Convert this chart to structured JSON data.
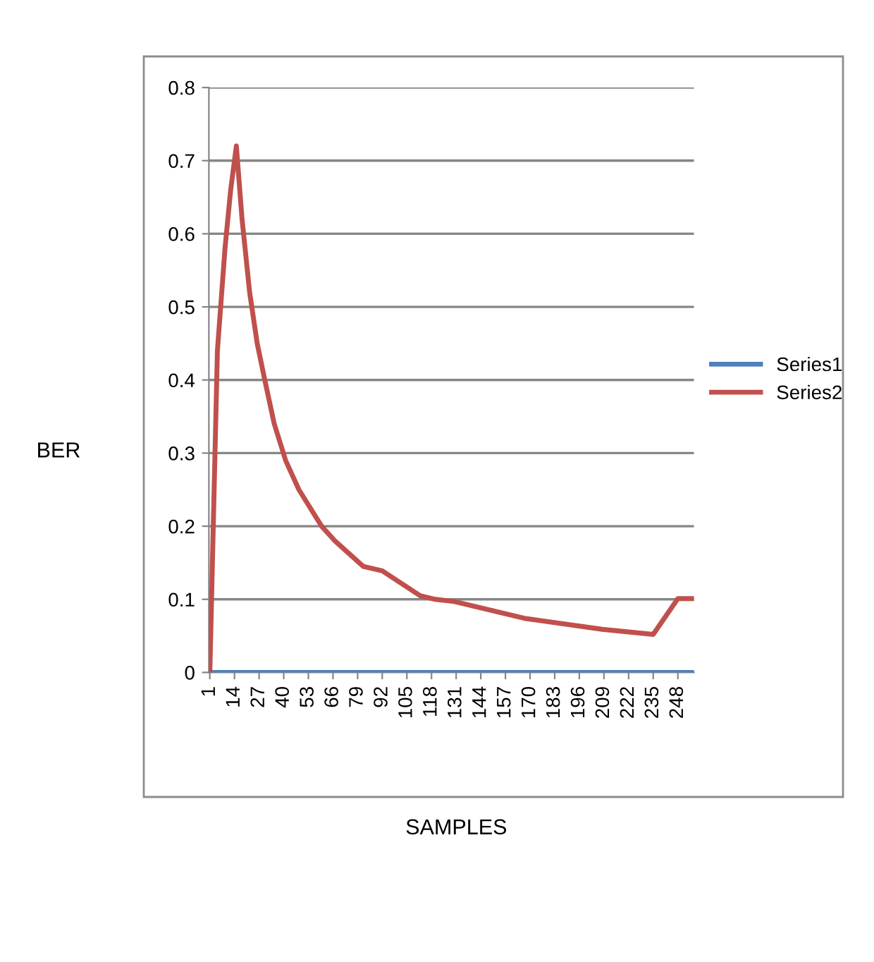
{
  "chart_data": {
    "type": "line",
    "xlabel": "SAMPLES",
    "ylabel": "BER",
    "xlim": [
      0.5,
      256.5
    ],
    "xticks": [
      1,
      14,
      27,
      40,
      53,
      66,
      79,
      92,
      105,
      118,
      131,
      144,
      157,
      170,
      183,
      196,
      209,
      222,
      235,
      248
    ],
    "ylim": [
      0,
      0.8
    ],
    "yticks": [
      0,
      0.1,
      0.2,
      0.3,
      0.4,
      0.5,
      0.6,
      0.7,
      0.8
    ],
    "grid": "y",
    "legend": "right",
    "marker": "none",
    "line_style": "solid",
    "series": [
      {
        "name": "Series1",
        "color": "#4f81bd",
        "x": [
          1,
          256
        ],
        "values": [
          0,
          0
        ]
      },
      {
        "name": "Series2",
        "color": "#c0504d",
        "x": [
          1,
          5,
          9,
          12,
          15,
          18,
          22,
          26,
          30,
          35,
          41,
          48,
          60,
          67,
          82,
          92,
          112,
          120,
          130,
          167,
          208,
          235,
          248,
          256
        ],
        "values": [
          0,
          0.44,
          0.58,
          0.66,
          0.72,
          0.62,
          0.52,
          0.45,
          0.4,
          0.34,
          0.29,
          0.25,
          0.2,
          0.18,
          0.145,
          0.139,
          0.105,
          0.1,
          0.097,
          0.074,
          0.059,
          0.052,
          0.101,
          0.101
        ]
      }
    ]
  }
}
